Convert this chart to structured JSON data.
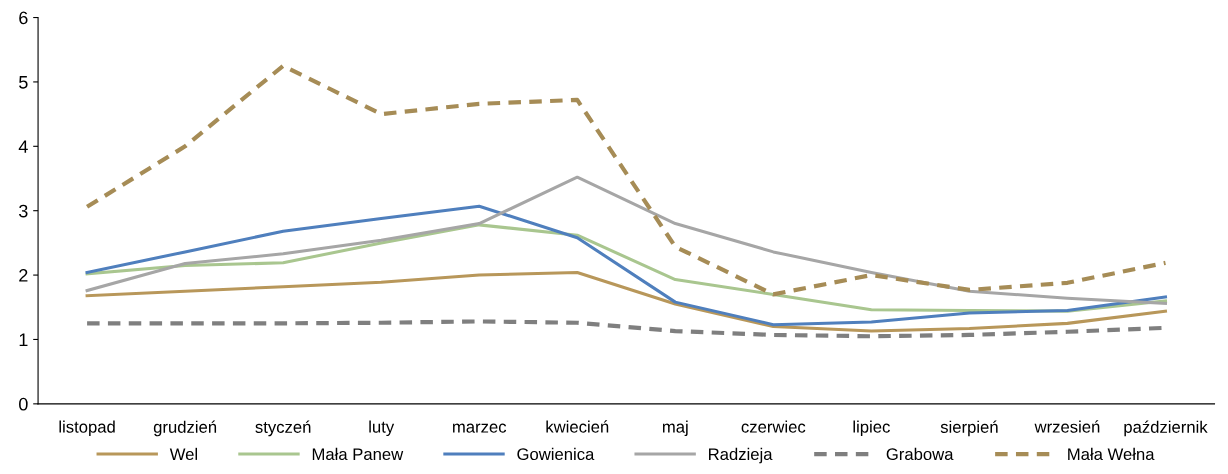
{
  "chart_data": {
    "type": "line",
    "categories": [
      "listopad",
      "grudzień",
      "styczeń",
      "luty",
      "marzec",
      "kwiecień",
      "maj",
      "czerwiec",
      "lipiec",
      "sierpień",
      "wrzesień",
      "październik"
    ],
    "ylim": [
      0,
      6
    ],
    "yticks": [
      0,
      1,
      2,
      3,
      4,
      5,
      6
    ],
    "grid": false,
    "legend": "bottom",
    "marker": "none",
    "series": [
      {
        "name": "Wel",
        "color": "#b8975a",
        "line_style": "solid",
        "values": [
          1.68,
          1.75,
          1.82,
          1.89,
          2.0,
          2.04,
          1.55,
          1.2,
          1.13,
          1.17,
          1.25,
          1.44
        ]
      },
      {
        "name": "Mała Panew",
        "color": "#a9c68f",
        "line_style": "solid",
        "values": [
          2.02,
          2.15,
          2.19,
          2.5,
          2.78,
          2.62,
          1.93,
          1.7,
          1.46,
          1.45,
          1.44,
          1.6
        ]
      },
      {
        "name": "Gowienica",
        "color": "#4f7fbd",
        "line_style": "solid",
        "values": [
          2.04,
          2.36,
          2.68,
          2.88,
          3.07,
          2.58,
          1.58,
          1.23,
          1.27,
          1.41,
          1.45,
          1.66
        ]
      },
      {
        "name": "Radzieja",
        "color": "#a6a6a6",
        "line_style": "solid",
        "values": [
          1.76,
          2.18,
          2.33,
          2.54,
          2.8,
          3.52,
          2.8,
          2.36,
          2.04,
          1.75,
          1.64,
          1.56
        ]
      },
      {
        "name": "Grabowa",
        "color": "#7f7f7f",
        "line_style": "dashed",
        "values": [
          1.25,
          1.25,
          1.25,
          1.26,
          1.28,
          1.26,
          1.13,
          1.07,
          1.05,
          1.07,
          1.12,
          1.18
        ]
      },
      {
        "name": "Mała Wełna",
        "color": "#a68c56",
        "line_style": "dashed",
        "values": [
          3.06,
          4.0,
          5.25,
          4.5,
          4.66,
          4.72,
          2.44,
          1.7,
          2.0,
          1.77,
          1.88,
          2.19
        ]
      }
    ]
  }
}
